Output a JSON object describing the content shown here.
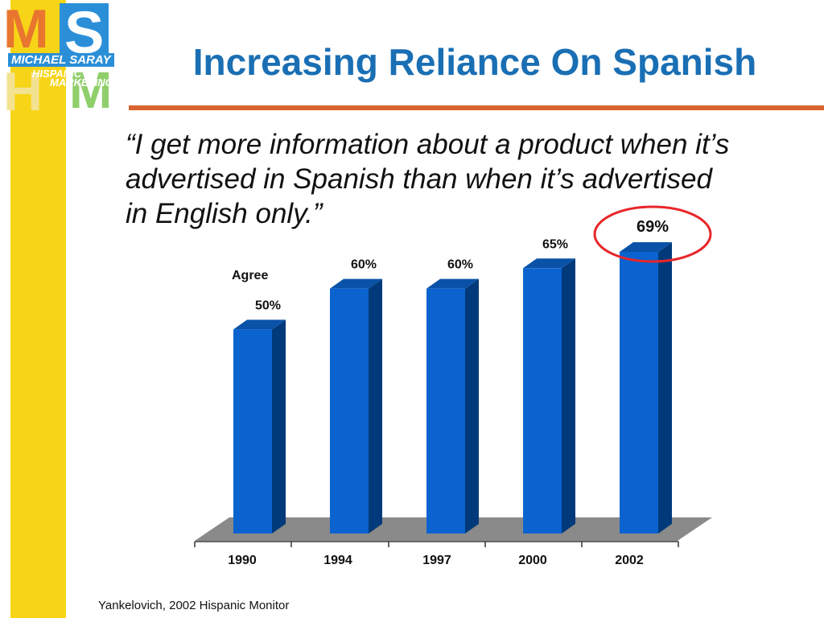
{
  "title": "Increasing Reliance On Spanish",
  "quote": "“I get more information about a product when it’s advertised in Spanish than when it’s advertised in English only.”",
  "source": "Yankelovich, 2002 Hispanic Monitor",
  "logo": {
    "letters": [
      "M",
      "S",
      "H",
      "M"
    ],
    "line1": "MICHAEL SARAY",
    "line2": "HISPANIC",
    "line3": "MARKETING"
  },
  "colors": {
    "accent_title": "#1a6fb4",
    "rule": "#d9622e",
    "side_bar": "#f7d417",
    "bar_front": "#0a63cf",
    "bar_side": "#003a7a",
    "bar_top": "#0a52a8",
    "floor": "#8a8a8a",
    "highlight_circle": "#e8262a"
  },
  "chart_data": {
    "type": "bar",
    "title": "",
    "series_label": "Agree",
    "categories": [
      "1990",
      "1994",
      "1997",
      "2000",
      "2002"
    ],
    "values": [
      50,
      60,
      60,
      65,
      69
    ],
    "data_labels": [
      "50%",
      "60%",
      "60%",
      "65%",
      "69%"
    ],
    "highlighted_category": "2002",
    "ylim": [
      0,
      70
    ],
    "grid": false,
    "legend": "none"
  }
}
